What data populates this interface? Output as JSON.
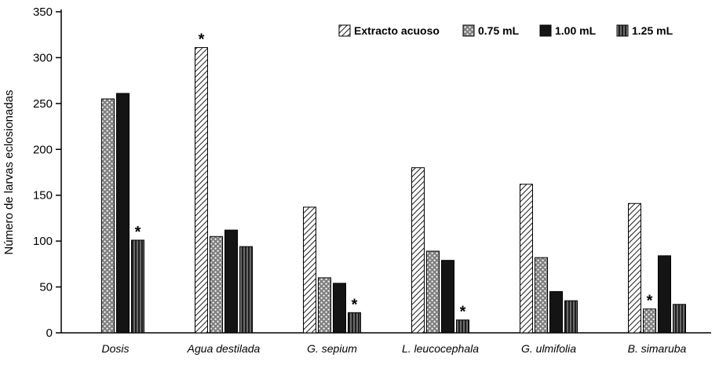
{
  "chart_data": {
    "type": "bar",
    "title": "",
    "xlabel": "",
    "ylabel": "Número de larvas eclosionadas",
    "ylim": [
      0,
      350
    ],
    "ytick_interval": 50,
    "grid": false,
    "legend_position": "top-right",
    "categories": [
      "Dosis",
      "Agua destilada",
      "G. sepium",
      "L. leucocephala",
      "G. ulmifolia",
      "B. simaruba"
    ],
    "series": [
      {
        "name": "Extracto acuoso",
        "pattern": "diagonal-hatch",
        "values": [
          null,
          311,
          137,
          180,
          162,
          141
        ],
        "starred": [
          false,
          true,
          false,
          false,
          false,
          false
        ]
      },
      {
        "name": "0.75 mL",
        "pattern": "gray-dots",
        "values": [
          255,
          105,
          60,
          89,
          82,
          26
        ],
        "starred": [
          false,
          false,
          false,
          false,
          false,
          true
        ]
      },
      {
        "name": "1.00 mL",
        "pattern": "solid-black",
        "values": [
          261,
          112,
          54,
          79,
          45,
          84
        ],
        "starred": [
          false,
          false,
          false,
          false,
          false,
          false
        ]
      },
      {
        "name": "1.25 mL",
        "pattern": "vertical-stripes",
        "values": [
          101,
          94,
          22,
          14,
          35,
          31
        ],
        "starred": [
          true,
          false,
          true,
          true,
          false,
          false
        ]
      }
    ],
    "annotation_symbol": "*"
  }
}
